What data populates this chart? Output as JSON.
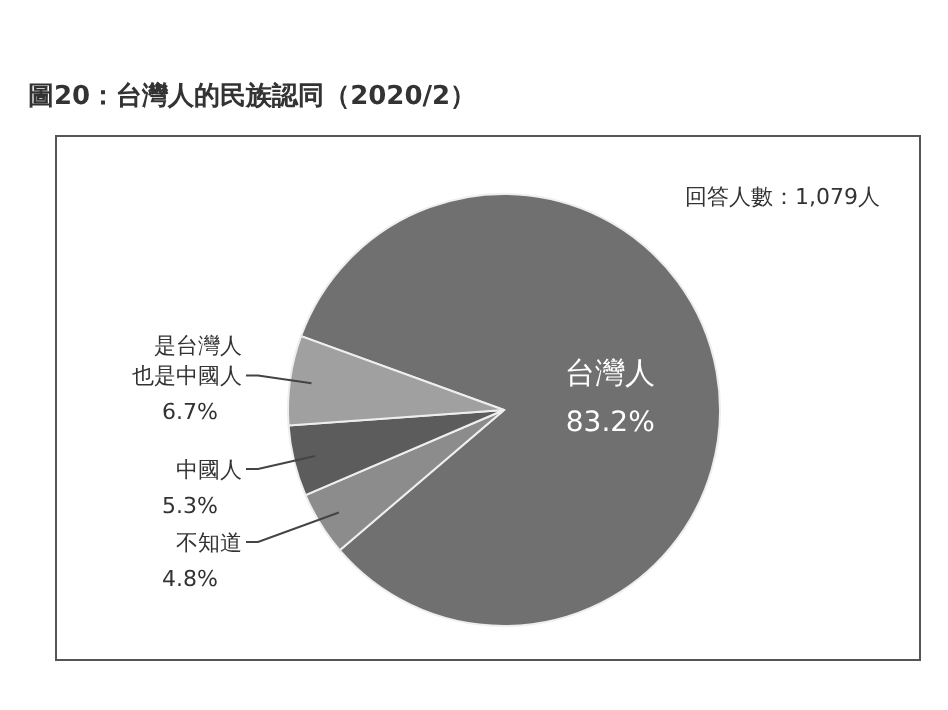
{
  "chart_data": {
    "type": "pie",
    "title": "圖20：台灣人的民族認同（2020/2）",
    "annotations": [
      "回答人數：1,079人"
    ],
    "categories": [
      "台灣人",
      "不知道",
      "中國人",
      "是台灣人也是中國人"
    ],
    "values": [
      83.2,
      4.8,
      5.3,
      6.7
    ],
    "value_labels": [
      "83.2%",
      "4.8%",
      "5.3%",
      "6.7%"
    ],
    "colors": [
      "#707070",
      "#8c8c8c",
      "#5c5c5c",
      "#a0a0a0"
    ]
  }
}
